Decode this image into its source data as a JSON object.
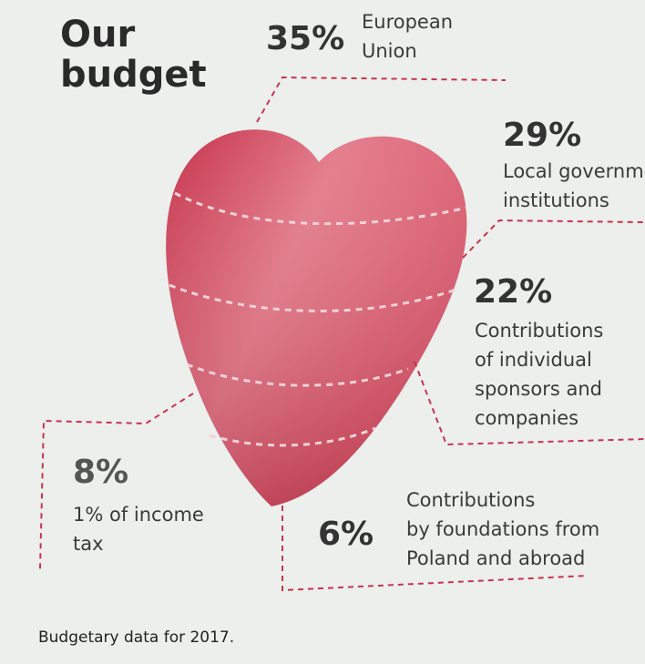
{
  "chart_data": {
    "type": "pie",
    "title": "Our budget",
    "title_lines": [
      "Our",
      "budget"
    ],
    "unit": "%",
    "slices": [
      {
        "name": "European Union",
        "label_lines": [
          "European",
          "Union"
        ],
        "value": 35,
        "display": "35%"
      },
      {
        "name": "Local government institutions",
        "label_lines": [
          "Local governme",
          "institutions"
        ],
        "value": 29,
        "display": "29%"
      },
      {
        "name": "Contributions of individual sponsors and companies",
        "label_lines": [
          "Contributions",
          "of individual",
          "sponsors and",
          "companies"
        ],
        "value": 22,
        "display": "22%"
      },
      {
        "name": "Contributions by foundations from Poland and abroad",
        "label_lines": [
          "Contributions",
          "by foundations from",
          "Poland and abroad"
        ],
        "value": 6,
        "display": "6%"
      },
      {
        "name": "1% of income tax",
        "label_lines": [
          "1% of income",
          "tax"
        ],
        "value": 8,
        "display": "8%"
      }
    ],
    "footnote": "Budgetary data for 2017."
  },
  "colors": {
    "background": "#ecefec",
    "heart_light": "#e37787",
    "heart_mid": "#d54a60",
    "heart_dark": "#c22640",
    "leader_line": "#c8344c",
    "text": "#2b2b2b"
  }
}
